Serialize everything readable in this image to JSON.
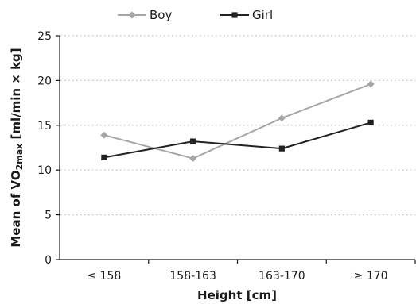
{
  "chart_data": {
    "type": "line",
    "categories": [
      "≤ 158",
      "158-163",
      "163-170",
      "≥ 170"
    ],
    "series": [
      {
        "name": "Boy",
        "values": [
          13.9,
          11.3,
          15.8,
          19.6
        ],
        "color": "#a6a6a6",
        "marker": "diamond"
      },
      {
        "name": "Girl",
        "values": [
          11.4,
          13.2,
          12.4,
          15.3
        ],
        "color": "#222222",
        "marker": "square"
      }
    ],
    "xlabel": "Height [cm]",
    "ylabel_main": "Mean of VO",
    "ylabel_sub": "2max",
    "ylabel_unit": " [ml/min × kg]",
    "ylim": [
      0,
      25
    ],
    "yticks": [
      "0",
      "5",
      "10",
      "15",
      "20",
      "25"
    ],
    "grid": "horizontal dotted",
    "legend_position": "top"
  }
}
